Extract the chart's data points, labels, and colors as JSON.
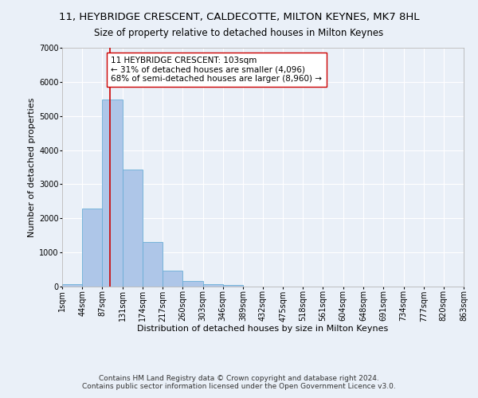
{
  "title": "11, HEYBRIDGE CRESCENT, CALDECOTTE, MILTON KEYNES, MK7 8HL",
  "subtitle": "Size of property relative to detached houses in Milton Keynes",
  "xlabel": "Distribution of detached houses by size in Milton Keynes",
  "ylabel": "Number of detached properties",
  "bin_edges": [
    1,
    44,
    87,
    131,
    174,
    217,
    260,
    303,
    346,
    389,
    432,
    475,
    518,
    561,
    604,
    648,
    691,
    734,
    777,
    820,
    863
  ],
  "bar_heights": [
    80,
    2280,
    5480,
    3440,
    1310,
    460,
    160,
    80,
    50,
    0,
    0,
    0,
    0,
    0,
    0,
    0,
    0,
    0,
    0,
    0
  ],
  "bar_color": "#aec6e8",
  "bar_edge_color": "#6aaed6",
  "property_size": 103,
  "vline_color": "#cc0000",
  "annotation_text": "11 HEYBRIDGE CRESCENT: 103sqm\n← 31% of detached houses are smaller (4,096)\n68% of semi-detached houses are larger (8,960) →",
  "annotation_box_color": "#ffffff",
  "annotation_box_edge_color": "#cc0000",
  "ylim": [
    0,
    7000
  ],
  "yticks": [
    0,
    1000,
    2000,
    3000,
    4000,
    5000,
    6000,
    7000
  ],
  "tick_labels": [
    "1sqm",
    "44sqm",
    "87sqm",
    "131sqm",
    "174sqm",
    "217sqm",
    "260sqm",
    "303sqm",
    "346sqm",
    "389sqm",
    "432sqm",
    "475sqm",
    "518sqm",
    "561sqm",
    "604sqm",
    "648sqm",
    "691sqm",
    "734sqm",
    "777sqm",
    "820sqm",
    "863sqm"
  ],
  "bg_color": "#eaf0f8",
  "footer_line1": "Contains HM Land Registry data © Crown copyright and database right 2024.",
  "footer_line2": "Contains public sector information licensed under the Open Government Licence v3.0.",
  "title_fontsize": 9.5,
  "subtitle_fontsize": 8.5,
  "axis_label_fontsize": 8,
  "tick_fontsize": 7,
  "annotation_fontsize": 7.5,
  "footer_fontsize": 6.5
}
